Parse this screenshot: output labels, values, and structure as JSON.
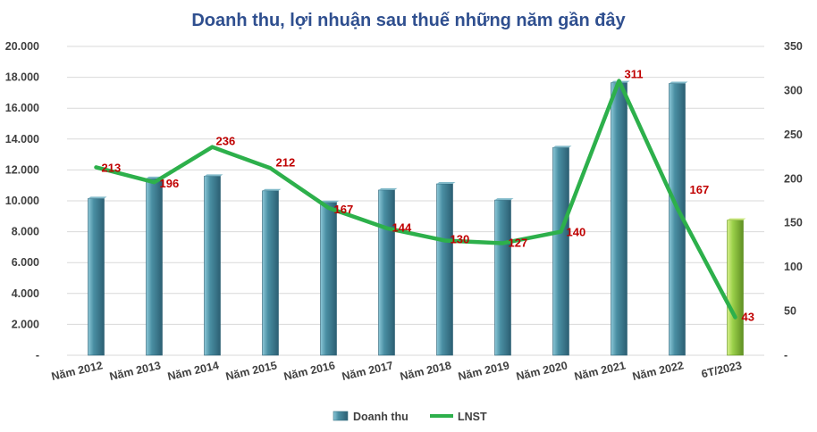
{
  "chart_data": {
    "type": "bar",
    "title": "Doanh thu, lợi nhuận sau thuế những năm gần đây",
    "categories": [
      "Năm 2012",
      "Năm 2013",
      "Năm 2014",
      "Năm 2015",
      "Năm 2016",
      "Năm 2017",
      "Năm 2018",
      "Năm 2019",
      "Năm 2020",
      "Năm 2021",
      "Năm 2022",
      "6T/2023"
    ],
    "series": [
      {
        "name": "Doanh thu",
        "kind": "bar",
        "axis": "left",
        "values": [
          10150,
          11450,
          11600,
          10650,
          9900,
          10700,
          11100,
          10050,
          13450,
          17650,
          17600,
          8750
        ],
        "color": "#4a8fa3",
        "highlight_color": "#8fc33a"
      },
      {
        "name": "LNST",
        "kind": "line",
        "axis": "right",
        "values": [
          213,
          196,
          236,
          212,
          167,
          144,
          130,
          127,
          140,
          311,
          167,
          43
        ],
        "labels": [
          "213",
          "196",
          "236",
          "212",
          "167",
          "144",
          "130",
          "127",
          "140",
          "311",
          "167",
          "43"
        ],
        "color": "#2db04b"
      }
    ],
    "y_left": {
      "ylim": [
        0,
        20000
      ],
      "ticks": [
        "-",
        "2.000",
        "4.000",
        "6.000",
        "8.000",
        "10.000",
        "12.000",
        "14.000",
        "16.000",
        "18.000",
        "20.000"
      ]
    },
    "y_right": {
      "ylim": [
        0,
        350
      ],
      "ticks": [
        "-",
        "50",
        "100",
        "150",
        "200",
        "250",
        "300",
        "350"
      ]
    },
    "grid": true,
    "legend": "bottom",
    "label_color": "#c00000",
    "title_color": "#2f4f8f"
  }
}
